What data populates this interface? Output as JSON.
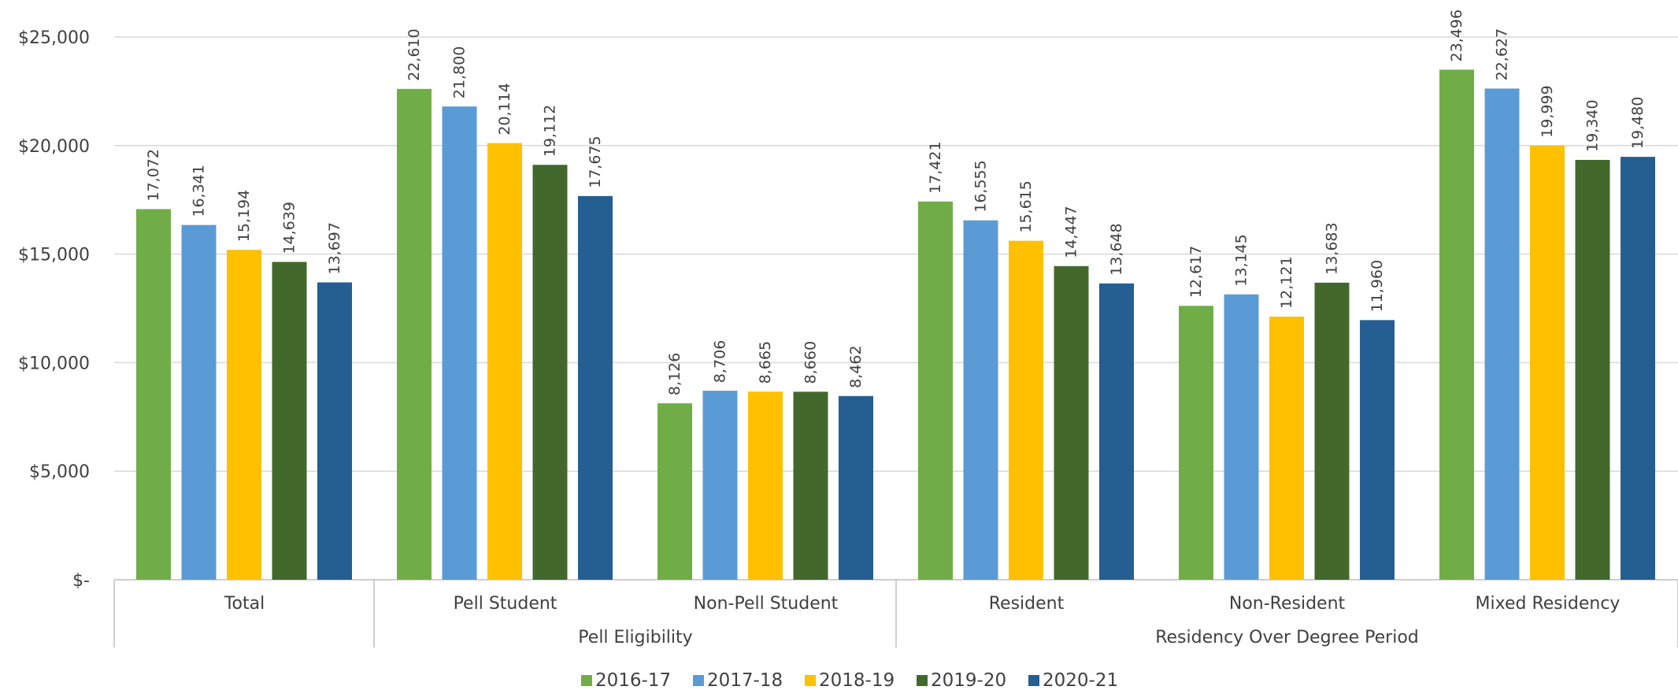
{
  "chart_data": {
    "type": "bar",
    "title": "",
    "xlabel": "",
    "ylabel": "",
    "ylim": [
      0,
      25000
    ],
    "y_ticks": [
      {
        "value": 0,
        "label": "$-"
      },
      {
        "value": 5000,
        "label": "$5,000"
      },
      {
        "value": 10000,
        "label": "$10,000"
      },
      {
        "value": 15000,
        "label": "$15,000"
      },
      {
        "value": 20000,
        "label": "$20,000"
      },
      {
        "value": 25000,
        "label": "$25,000"
      }
    ],
    "grid": true,
    "legend_position": "bottom",
    "categories": [
      "Total",
      "Pell Student",
      "Non-Pell Student",
      "Resident",
      "Non-Resident",
      "Mixed Residency"
    ],
    "category_groups": [
      {
        "label": "",
        "categories": [
          "Total"
        ]
      },
      {
        "label": "Pell Eligibility",
        "categories": [
          "Pell Student",
          "Non-Pell Student"
        ]
      },
      {
        "label": "Residency Over Degree Period",
        "categories": [
          "Resident",
          "Non-Resident",
          "Mixed Residency"
        ]
      }
    ],
    "series": [
      {
        "name": "2016-17",
        "color": "#70AD47",
        "values": [
          17072,
          22610,
          8126,
          17421,
          12617,
          23496
        ],
        "labels": [
          "17,072",
          "22,610",
          "8,126",
          "17,421",
          "12,617",
          "23,496"
        ]
      },
      {
        "name": "2017-18",
        "color": "#5B9BD5",
        "values": [
          16341,
          21800,
          8706,
          16555,
          13145,
          22627
        ],
        "labels": [
          "16,341",
          "21,800",
          "8,706",
          "16,555",
          "13,145",
          "22,627"
        ]
      },
      {
        "name": "2018-19",
        "color": "#FFC000",
        "values": [
          15194,
          20114,
          8665,
          15615,
          12121,
          19999
        ],
        "labels": [
          "15,194",
          "20,114",
          "8,665",
          "15,615",
          "12,121",
          "19,999"
        ]
      },
      {
        "name": "2019-20",
        "color": "#43682B",
        "values": [
          14639,
          19112,
          8660,
          14447,
          13683,
          19340
        ],
        "labels": [
          "14,639",
          "19,112",
          "8,660",
          "14,447",
          "13,683",
          "19,340"
        ]
      },
      {
        "name": "2020-21",
        "color": "#255E91",
        "values": [
          13697,
          17675,
          8462,
          13648,
          11960,
          19480
        ],
        "labels": [
          "13,697",
          "17,675",
          "8,462",
          "13,648",
          "11,960",
          "19,480"
        ]
      }
    ]
  }
}
